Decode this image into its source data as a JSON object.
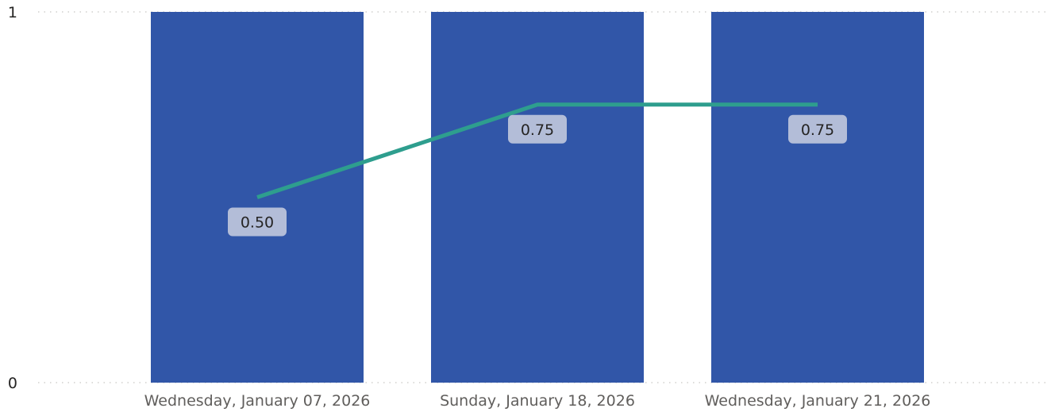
{
  "chart_data": {
    "type": "bar",
    "categories": [
      "Wednesday, January 07, 2026",
      "Sunday, January 18, 2026",
      "Wednesday, January 21, 2026"
    ],
    "series": [
      {
        "values": [
          1,
          1,
          1
        ],
        "kind": "bar",
        "color": "#3156a8"
      },
      {
        "values": [
          0.5,
          0.75,
          0.75
        ],
        "kind": "line",
        "color": "#2e9e8e",
        "labels": [
          "0.50",
          "0.75",
          "0.75"
        ]
      }
    ],
    "y_ticks": [
      "0",
      "1"
    ],
    "ylim": [
      0,
      1
    ],
    "grid": true,
    "gridline_style": "dotted",
    "data_label_background": "#b3bdd8"
  }
}
